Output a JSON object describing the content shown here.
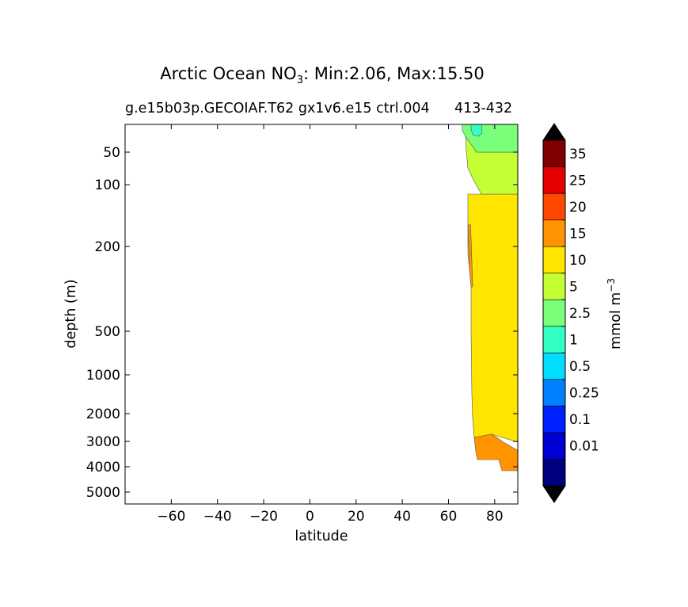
{
  "chart_data": {
    "type": "contour",
    "title_prefix": "Arctic Ocean NO",
    "title_sub": "3",
    "title_suffix": ": Min:2.06, Max:15.50",
    "subtitle_left": "g.e15b03p.GECOIAF.T62 gx1v6.e15 ctrl.004",
    "subtitle_right": "413-432",
    "xlabel": "latitude",
    "ylabel": "depth (m)",
    "xlim": [
      -80,
      90
    ],
    "x_ticks": [
      -60,
      -40,
      -20,
      0,
      20,
      40,
      60,
      80
    ],
    "x_tick_labels": [
      "−60",
      "−40",
      "−20",
      "0",
      "20",
      "40",
      "60",
      "80"
    ],
    "y_ticks": [
      50,
      100,
      200,
      500,
      1000,
      2000,
      3000,
      4000,
      5000
    ],
    "y_tick_labels": [
      "50",
      "100",
      "200",
      "500",
      "1000",
      "2000",
      "3000",
      "4000",
      "5000"
    ],
    "colorbar": {
      "label_prefix": "mmol m",
      "label_exp": "−3",
      "levels": [
        "0.01",
        "0.1",
        "0.25",
        "0.5",
        "1",
        "2.5",
        "5",
        "10",
        "15",
        "20",
        "25",
        "35"
      ],
      "colors": [
        "#00007f",
        "#0000d4",
        "#0022ff",
        "#0080ff",
        "#00ddff",
        "#33ffc4",
        "#7aff7a",
        "#c4ff33",
        "#ffe500",
        "#ff9400",
        "#ff4800",
        "#e40000",
        "#7f0000"
      ],
      "extend": "both",
      "over_color": "#000000",
      "under_color": "#000000"
    },
    "bands": [
      {
        "name": "10-15",
        "color": "#ffe500"
      },
      {
        "name": "5-10",
        "color": "#c4ff33"
      },
      {
        "name": "2.5-5",
        "color": "#7aff7a"
      },
      {
        "name": "1-2.5",
        "color": "#33ffc4"
      },
      {
        "name": "15-20",
        "color": "#ff9400"
      }
    ]
  }
}
